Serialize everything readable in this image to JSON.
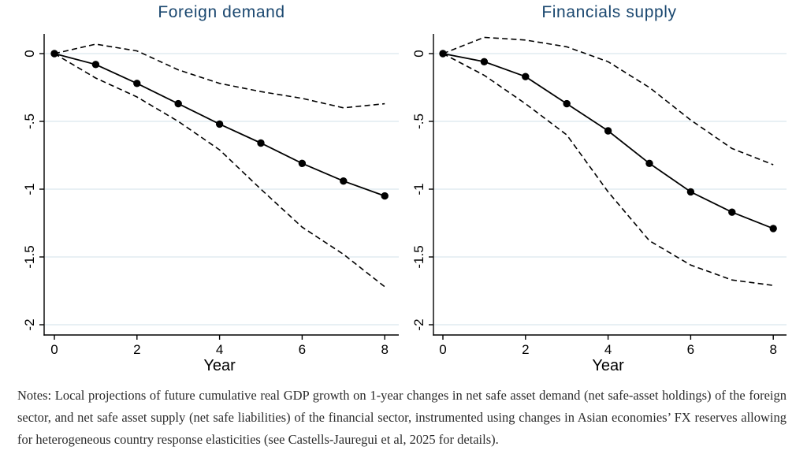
{
  "figure": {
    "notes": "Notes: Local projections of future cumulative real GDP growth on 1-year changes in net safe asset demand (net safe-asset holdings) of the foreign sector, and net safe asset supply (net safe liabilities) of the financial sector, instrumented using changes in Asian economies’ FX reserves allowing for heterogeneous country response elasticities (see Castells-Jauregui et al, 2025 for details)."
  },
  "colors": {
    "title": "#1a476f",
    "grid": "#e0ecf0",
    "axis": "#000000",
    "line": "#000000",
    "notes_text": "#2b2b2b",
    "background": "#ffffff"
  },
  "chart_data": [
    {
      "type": "line",
      "title": "Foreign demand",
      "xlabel": "Year",
      "ylabel": "",
      "x": [
        0,
        1,
        2,
        3,
        4,
        5,
        6,
        7,
        8
      ],
      "x_ticks": [
        0,
        2,
        4,
        6,
        8
      ],
      "x_tick_labels": [
        "0",
        "2",
        "4",
        "6",
        "8"
      ],
      "y_ticks": [
        0,
        -0.5,
        -1,
        -1.5,
        -2
      ],
      "y_tick_labels": [
        "0",
        "-.5",
        "-1",
        "-1.5",
        "-2"
      ],
      "xlim": [
        0,
        8
      ],
      "ylim": [
        0.15,
        -2.08
      ],
      "grid": true,
      "legend_position": "none",
      "series": [
        {
          "name": "estimate",
          "style": "solid-marker",
          "values": [
            0,
            -0.08,
            -0.22,
            -0.37,
            -0.52,
            -0.66,
            -0.81,
            -0.94,
            -1.05
          ]
        },
        {
          "name": "upper-ci",
          "style": "dashed",
          "values": [
            0,
            0.07,
            0.02,
            -0.12,
            -0.22,
            -0.28,
            -0.33,
            -0.4,
            -0.37
          ]
        },
        {
          "name": "lower-ci",
          "style": "dashed",
          "values": [
            0,
            -0.18,
            -0.32,
            -0.5,
            -0.71,
            -1.0,
            -1.28,
            -1.48,
            -1.72
          ]
        }
      ]
    },
    {
      "type": "line",
      "title": "Financials supply",
      "xlabel": "Year",
      "ylabel": "",
      "x": [
        0,
        1,
        2,
        3,
        4,
        5,
        6,
        7,
        8
      ],
      "x_ticks": [
        0,
        2,
        4,
        6,
        8
      ],
      "x_tick_labels": [
        "0",
        "2",
        "4",
        "6",
        "8"
      ],
      "y_ticks": [
        0,
        -0.5,
        -1,
        -1.5,
        -2
      ],
      "y_tick_labels": [
        "0",
        "-.5",
        "-1",
        "-1.5",
        "-2"
      ],
      "xlim": [
        0,
        8
      ],
      "ylim": [
        0.15,
        -2.08
      ],
      "grid": true,
      "legend_position": "none",
      "series": [
        {
          "name": "estimate",
          "style": "solid-marker",
          "values": [
            0,
            -0.06,
            -0.17,
            -0.37,
            -0.57,
            -0.81,
            -1.02,
            -1.17,
            -1.29
          ]
        },
        {
          "name": "upper-ci",
          "style": "dashed",
          "values": [
            0,
            0.12,
            0.1,
            0.05,
            -0.06,
            -0.25,
            -0.49,
            -0.7,
            -0.82
          ]
        },
        {
          "name": "lower-ci",
          "style": "dashed",
          "values": [
            0,
            -0.16,
            -0.37,
            -0.6,
            -1.02,
            -1.38,
            -1.56,
            -1.67,
            -1.71
          ]
        }
      ]
    }
  ]
}
